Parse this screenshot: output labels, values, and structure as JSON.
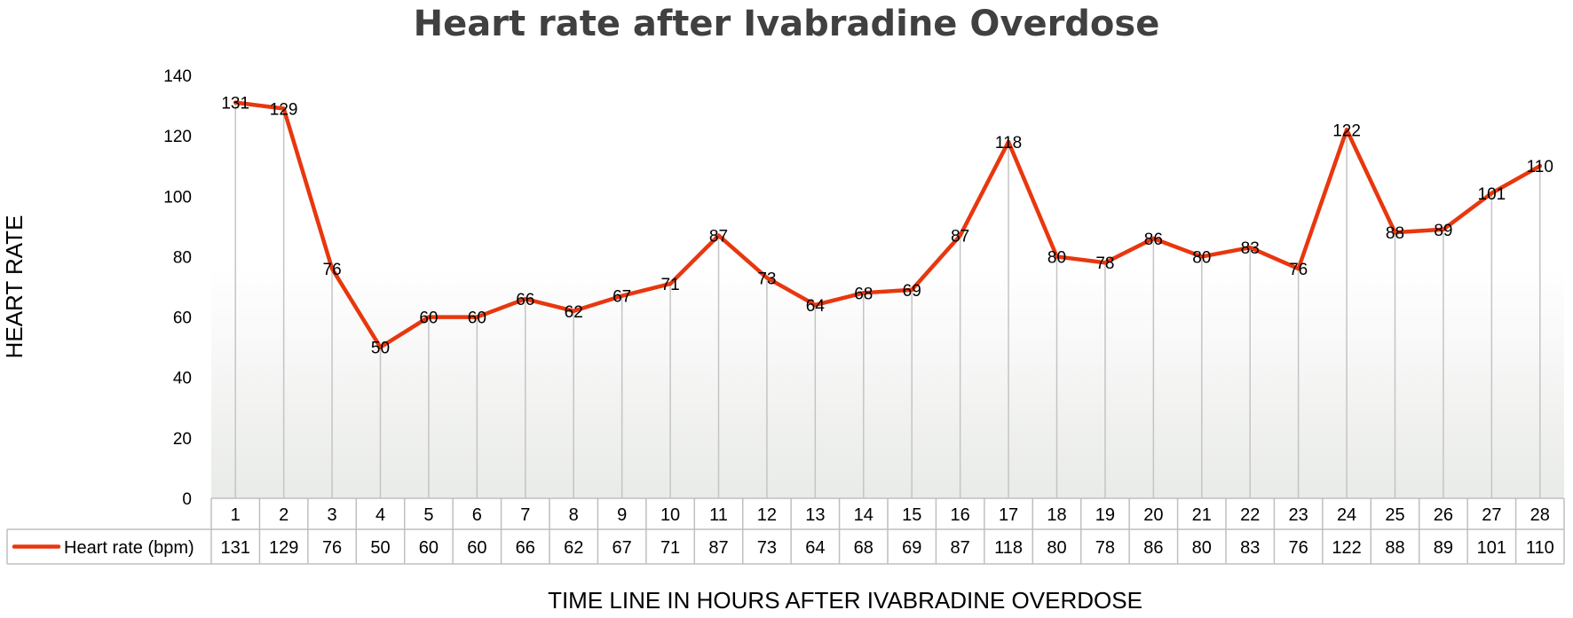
{
  "chart_data": {
    "type": "line",
    "title": "Heart rate after Ivabradine Overdose",
    "xlabel": "TIME LINE IN HOURS AFTER IVABRADINE OVERDOSE",
    "ylabel": "HEART RATE",
    "ylim": [
      0,
      140
    ],
    "yticks": [
      0,
      20,
      40,
      60,
      80,
      100,
      120,
      140
    ],
    "categories": [
      "1",
      "2",
      "3",
      "4",
      "5",
      "6",
      "7",
      "8",
      "9",
      "10",
      "11",
      "12",
      "13",
      "14",
      "15",
      "16",
      "17",
      "18",
      "19",
      "20",
      "21",
      "22",
      "23",
      "24",
      "25",
      "26",
      "27",
      "28"
    ],
    "series": [
      {
        "name": "Heart rate (bpm)",
        "color": "#e8370e",
        "values": [
          131,
          129,
          76,
          50,
          60,
          60,
          66,
          62,
          67,
          71,
          87,
          73,
          64,
          68,
          69,
          87,
          118,
          80,
          78,
          86,
          80,
          83,
          76,
          122,
          88,
          89,
          101,
          110
        ]
      }
    ],
    "data_labels": true,
    "data_table": true,
    "drop_lines": true,
    "grid": false,
    "legend": "data-table"
  }
}
